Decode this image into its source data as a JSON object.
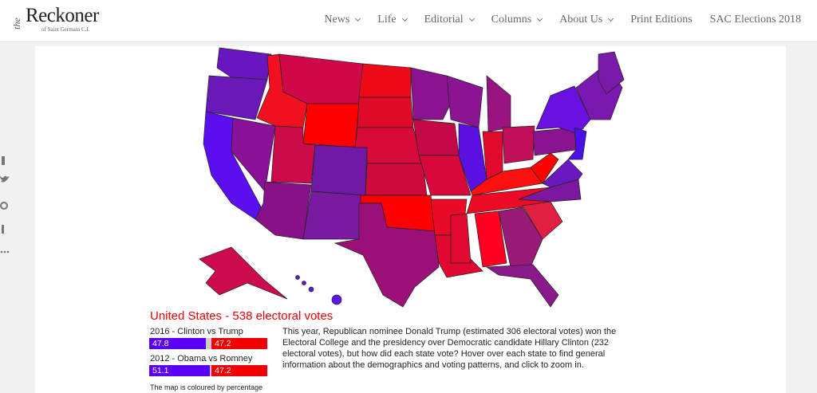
{
  "header": {
    "logo_prefix": "the",
    "logo": "Reckoner",
    "logo_sub": "of Saint Germain C.I.",
    "nav": [
      {
        "label": "News",
        "dropdown": true
      },
      {
        "label": "Life",
        "dropdown": true
      },
      {
        "label": "Editorial",
        "dropdown": true
      },
      {
        "label": "Columns",
        "dropdown": true
      },
      {
        "label": "About Us",
        "dropdown": true
      },
      {
        "label": "Print Editions",
        "dropdown": false
      },
      {
        "label": "SAC Elections 2018",
        "dropdown": false
      }
    ]
  },
  "map": {
    "title": "United States - 538 electoral votes",
    "elections": [
      {
        "label": "2016 - Clinton vs Trump",
        "dem": 47.8,
        "rep": 47.2
      },
      {
        "label": "2012 - Obama vs Romney",
        "dem": 51.1,
        "rep": 47.2
      }
    ],
    "description": "This year, Republican nominee Donald Trump (estimated 306 electoral votes) won the Electoral College and the presidency over Democratic candidate Hillary Clinton (232 electoral votes), but how did each state vote? Hover over each state to find general information about the demographics and voting patterns, and click to zoom in.",
    "note": "The map is coloured by percentage"
  }
}
